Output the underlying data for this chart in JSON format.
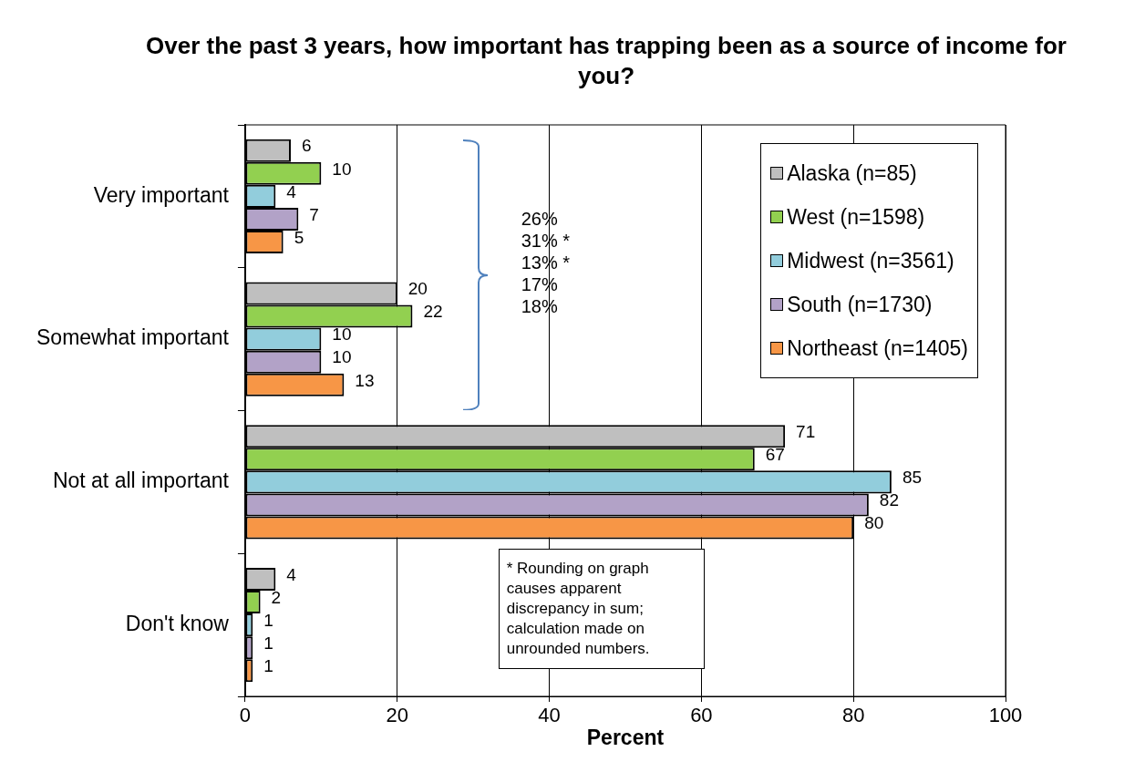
{
  "chart_data": {
    "type": "bar",
    "orientation": "horizontal",
    "title": "Over the past 3 years, how important has trapping been as a source of income for you?",
    "xlabel": "Percent",
    "categories": [
      "Very important",
      "Somewhat important",
      "Not at all important",
      "Don't know"
    ],
    "series": [
      {
        "name": "Alaska (n=85)",
        "color": "#bfbfbf",
        "values": [
          6,
          20,
          71,
          4
        ]
      },
      {
        "name": "West (n=1598)",
        "color": "#92d050",
        "values": [
          10,
          22,
          67,
          2
        ]
      },
      {
        "name": "Midwest (n=3561)",
        "color": "#92cddc",
        "values": [
          4,
          10,
          85,
          1
        ]
      },
      {
        "name": "South (n=1730)",
        "color": "#b2a2c7",
        "values": [
          7,
          10,
          82,
          1
        ]
      },
      {
        "name": "Northeast (n=1405)",
        "color": "#f79646",
        "values": [
          5,
          13,
          80,
          1
        ]
      }
    ],
    "xlim": [
      0,
      100
    ],
    "xticks": [
      0,
      20,
      40,
      60,
      80,
      100
    ],
    "grid": "x",
    "legend": "top right",
    "data_labels": true,
    "annotations": [
      "26%\n31% *\n13% *\n17%\n18%",
      "* Rounding on graph causes apparent discrepancy in sum; calculation made on unrounded numbers."
    ]
  }
}
